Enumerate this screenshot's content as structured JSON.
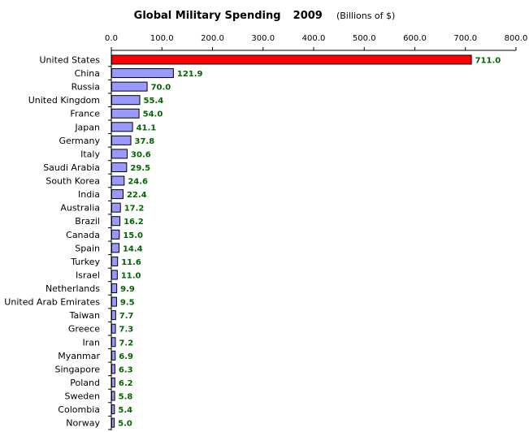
{
  "chart_data": {
    "type": "bar",
    "orientation": "horizontal",
    "title": "Global Military Spending",
    "year": "2009",
    "unit_label": "(Billions of $)",
    "categories": [
      "United States",
      "China",
      "Russia",
      "United Kingdom",
      "France",
      "Japan",
      "Germany",
      "Italy",
      "Saudi Arabia",
      "South Korea",
      "India",
      "Australia",
      "Brazil",
      "Canada",
      "Spain",
      "Turkey",
      "Israel",
      "Netherlands",
      "United Arab Emirates",
      "Taiwan",
      "Greece",
      "Iran",
      "Myanmar",
      "Singapore",
      "Poland",
      "Sweden",
      "Colombia",
      "Norway"
    ],
    "values": [
      711.0,
      121.9,
      70.0,
      55.4,
      54.0,
      41.1,
      37.8,
      30.6,
      29.5,
      24.6,
      22.4,
      17.2,
      16.2,
      15.0,
      14.4,
      11.6,
      11.0,
      9.9,
      9.5,
      7.7,
      7.3,
      7.2,
      6.9,
      6.3,
      6.2,
      5.8,
      5.4,
      5.0
    ],
    "value_labels": [
      "711.0",
      "121.9",
      "70.0",
      "55.4",
      "54.0",
      "41.1",
      "37.8",
      "30.6",
      "29.5",
      "24.6",
      "22.4",
      "17.2",
      "16.2",
      "15.0",
      "14.4",
      "11.6",
      "11.0",
      "9.9",
      "9.5",
      "7.7",
      "7.3",
      "7.2",
      "6.9",
      "6.3",
      "6.2",
      "5.8",
      "5.4",
      "5.0"
    ],
    "xlim": [
      0,
      800
    ],
    "x_ticks": [
      0,
      100,
      200,
      300,
      400,
      500,
      600,
      700,
      800
    ],
    "x_tick_labels": [
      "0.0",
      "100.0",
      "200.0",
      "300.0",
      "400.0",
      "500.0",
      "600.0",
      "700.0",
      "800.0"
    ],
    "x_axis_position": "top",
    "grid": false,
    "colors": {
      "highlight_bar": "#ff0000",
      "bar": "#9999ff",
      "bar_outline": "#000000",
      "value_label": "#006600"
    },
    "highlight_category": "United States"
  }
}
